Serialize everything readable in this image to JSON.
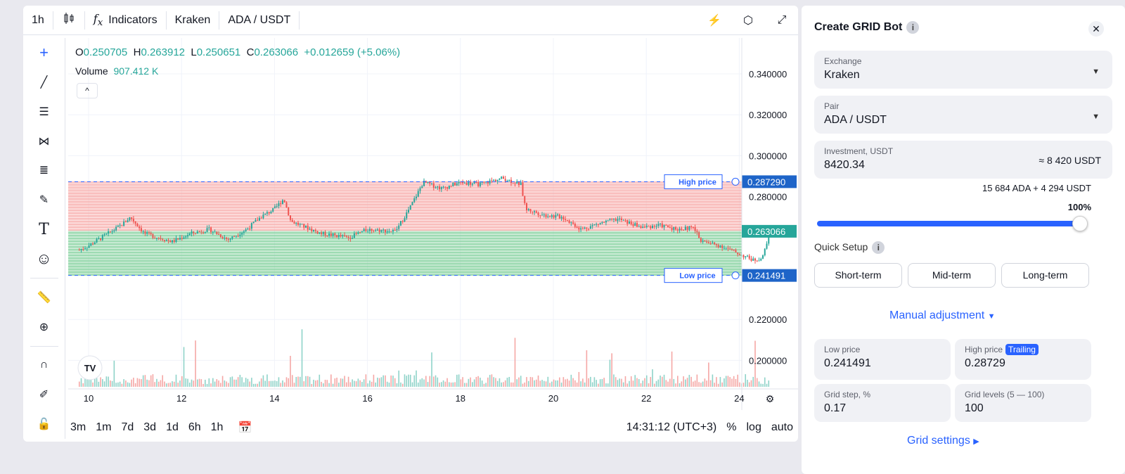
{
  "toolbar": {
    "interval": "1h",
    "indicators": "Indicators",
    "exchange": "Kraken",
    "pair": "ADA / USDT"
  },
  "legend": {
    "o_label": "O",
    "o": "0.250705",
    "h_label": "H",
    "h": "0.263912",
    "l_label": "L",
    "l": "0.250651",
    "c_label": "C",
    "c": "0.263066",
    "change": "+0.012659 (+5.06%)",
    "volume_label": "Volume",
    "volume": "907.412 K"
  },
  "chart": {
    "price_ticks": [
      "0.340000",
      "0.320000",
      "0.300000",
      "0.280000",
      "0.220000",
      "0.200000"
    ],
    "price_tick_values": [
      0.34,
      0.32,
      0.3,
      0.28,
      0.22,
      0.2
    ],
    "date_ticks": [
      "10",
      "12",
      "14",
      "16",
      "18",
      "20",
      "22",
      "24"
    ],
    "high_price": {
      "label": "High price",
      "value": "0.287290"
    },
    "low_price": {
      "label": "Low price",
      "value": "0.241491"
    },
    "last_price": "0.263066",
    "price_path": [
      [
        9.8,
        0.254
      ],
      [
        10,
        0.256
      ],
      [
        10.7,
        0.266
      ],
      [
        10.9,
        0.27
      ],
      [
        11.2,
        0.262
      ],
      [
        11.8,
        0.258
      ],
      [
        12.2,
        0.262
      ],
      [
        12.6,
        0.264
      ],
      [
        13,
        0.259
      ],
      [
        13.4,
        0.264
      ],
      [
        13.7,
        0.27
      ],
      [
        14.0,
        0.274
      ],
      [
        14.2,
        0.279
      ],
      [
        14.35,
        0.268
      ],
      [
        15,
        0.262
      ],
      [
        15.6,
        0.26
      ],
      [
        16,
        0.264
      ],
      [
        16.6,
        0.263
      ],
      [
        16.9,
        0.274
      ],
      [
        17.2,
        0.287
      ],
      [
        17.6,
        0.284
      ],
      [
        18,
        0.287
      ],
      [
        18.4,
        0.286
      ],
      [
        18.9,
        0.289
      ],
      [
        19.3,
        0.286
      ],
      [
        19.4,
        0.274
      ],
      [
        19.8,
        0.271
      ],
      [
        20.2,
        0.27
      ],
      [
        20.6,
        0.264
      ],
      [
        21,
        0.267
      ],
      [
        21.4,
        0.269
      ],
      [
        21.9,
        0.265
      ],
      [
        22.3,
        0.266
      ],
      [
        22.7,
        0.264
      ],
      [
        23,
        0.265
      ],
      [
        23.2,
        0.258
      ],
      [
        23.6,
        0.256
      ],
      [
        24,
        0.252
      ],
      [
        24.3,
        0.249
      ],
      [
        24.5,
        0.25
      ],
      [
        24.65,
        0.263
      ]
    ]
  },
  "timeframes": [
    "3m",
    "1m",
    "7d",
    "3d",
    "1d",
    "6h",
    "1h"
  ],
  "bottom": {
    "time": "14:31:12 (UTC+3)",
    "percent": "%",
    "log": "log",
    "auto": "auto"
  },
  "bot": {
    "title": "Create GRID Bot",
    "exchange": {
      "label": "Exchange",
      "value": "Kraken"
    },
    "pair": {
      "label": "Pair",
      "value": "ADA / USDT"
    },
    "investment": {
      "label": "Investment, USDT",
      "value": "8420.34",
      "approx": "≈ 8 420 USDT"
    },
    "split": "15 684 ADA + 4 294 USDT",
    "percent": "100%",
    "slider_value": 100,
    "quick_setup": "Quick Setup",
    "presets": [
      "Short-term",
      "Mid-term",
      "Long-term"
    ],
    "manual": "Manual adjustment",
    "low": {
      "label": "Low price",
      "value": "0.241491"
    },
    "high": {
      "label": "High price",
      "badge": "Trailing",
      "value": "0.28729"
    },
    "step": {
      "label": "Grid step, %",
      "value": "0.17"
    },
    "levels": {
      "label": "Grid levels (5 — 100)",
      "value": "100"
    },
    "grid_settings": "Grid settings"
  },
  "colors": {
    "up": "#26a69a",
    "down": "#ef5350",
    "accent": "#2962ff"
  }
}
